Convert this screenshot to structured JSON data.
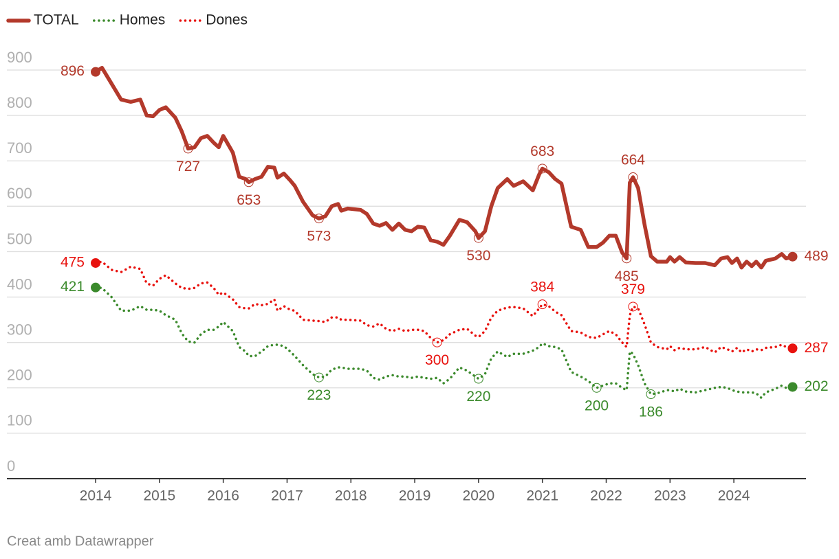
{
  "chart_data": {
    "type": "line",
    "source": "Creat amb Datawrapper",
    "x": [
      2014.0,
      2014.1,
      2014.25,
      2014.4,
      2014.55,
      2014.7,
      2014.8,
      2014.9,
      2015.0,
      2015.1,
      2015.25,
      2015.35,
      2015.45,
      2015.55,
      2015.65,
      2015.75,
      2015.85,
      2015.93,
      2016.0,
      2016.15,
      2016.25,
      2016.35,
      2016.4,
      2016.5,
      2016.6,
      2016.7,
      2016.8,
      2016.85,
      2016.95,
      2017.05,
      2017.12,
      2017.25,
      2017.4,
      2017.5,
      2017.6,
      2017.7,
      2017.8,
      2017.85,
      2017.95,
      2018.15,
      2018.25,
      2018.35,
      2018.45,
      2018.55,
      2018.65,
      2018.75,
      2018.85,
      2018.95,
      2019.05,
      2019.15,
      2019.25,
      2019.35,
      2019.45,
      2019.55,
      2019.7,
      2019.82,
      2019.95,
      2020.0,
      2020.1,
      2020.2,
      2020.3,
      2020.45,
      2020.55,
      2020.7,
      2020.85,
      2020.95,
      2021.0,
      2021.1,
      2021.2,
      2021.3,
      2021.45,
      2021.6,
      2021.72,
      2021.85,
      2021.95,
      2022.05,
      2022.15,
      2022.25,
      2022.32,
      2022.37,
      2022.42,
      2022.5,
      2022.6,
      2022.7,
      2022.8,
      2022.95,
      2023.0,
      2023.07,
      2023.15,
      2023.25,
      2023.4,
      2023.55,
      2023.7,
      2023.8,
      2023.9,
      2023.97,
      2024.05,
      2024.12,
      2024.2,
      2024.28,
      2024.35,
      2024.43,
      2024.5,
      2024.65,
      2024.75,
      2024.82,
      2024.92
    ],
    "series": [
      {
        "name": "TOTAL",
        "color": "#b3392b",
        "style": "solid",
        "labels": [
          0,
          12,
          22,
          33,
          57,
          66,
          78,
          80,
          106
        ],
        "values": [
          896,
          905,
          870,
          835,
          830,
          835,
          800,
          798,
          812,
          818,
          795,
          765,
          727,
          730,
          750,
          755,
          740,
          730,
          755,
          718,
          665,
          660,
          653,
          660,
          665,
          687,
          685,
          663,
          672,
          657,
          645,
          610,
          580,
          573,
          578,
          600,
          605,
          590,
          595,
          592,
          583,
          562,
          557,
          563,
          548,
          562,
          548,
          545,
          555,
          553,
          525,
          522,
          515,
          535,
          570,
          565,
          545,
          530,
          545,
          600,
          640,
          660,
          645,
          655,
          635,
          670,
          683,
          675,
          660,
          650,
          555,
          548,
          510,
          510,
          520,
          535,
          535,
          498,
          485,
          652,
          664,
          640,
          560,
          490,
          478,
          478,
          488,
          478,
          488,
          476,
          475,
          475,
          470,
          485,
          488,
          475,
          485,
          465,
          478,
          468,
          478,
          465,
          480,
          485,
          495,
          485,
          489
        ]
      },
      {
        "name": "Homes",
        "color": "#3b8a2c",
        "style": "dotted",
        "labels": [
          0,
          33,
          57,
          73,
          83,
          106
        ],
        "values": [
          421,
          420,
          400,
          370,
          370,
          380,
          372,
          372,
          370,
          360,
          350,
          320,
          302,
          300,
          318,
          328,
          328,
          335,
          345,
          325,
          290,
          280,
          270,
          270,
          280,
          292,
          295,
          295,
          292,
          280,
          270,
          250,
          230,
          223,
          225,
          240,
          245,
          245,
          242,
          242,
          238,
          222,
          218,
          225,
          228,
          225,
          225,
          222,
          225,
          222,
          220,
          222,
          210,
          220,
          245,
          238,
          225,
          220,
          230,
          265,
          280,
          268,
          275,
          275,
          282,
          290,
          298,
          292,
          290,
          285,
          235,
          225,
          215,
          200,
          205,
          210,
          210,
          200,
          195,
          280,
          275,
          250,
          210,
          186,
          188,
          195,
          195,
          192,
          198,
          192,
          190,
          195,
          200,
          202,
          200,
          195,
          192,
          190,
          190,
          190,
          188,
          178,
          190,
          198,
          205,
          200,
          202
        ]
      },
      {
        "name": "Dones",
        "color": "#e8120e",
        "style": "dotted",
        "labels": [
          0,
          51,
          66,
          80,
          106
        ],
        "values": [
          475,
          478,
          460,
          455,
          467,
          462,
          430,
          425,
          440,
          448,
          430,
          420,
          418,
          420,
          430,
          432,
          420,
          405,
          410,
          395,
          378,
          375,
          375,
          385,
          382,
          385,
          395,
          370,
          380,
          372,
          370,
          350,
          348,
          347,
          345,
          355,
          355,
          350,
          350,
          348,
          338,
          335,
          342,
          330,
          325,
          330,
          325,
          328,
          328,
          325,
          310,
          300,
          305,
          318,
          328,
          330,
          315,
          312,
          325,
          355,
          370,
          377,
          378,
          375,
          358,
          375,
          384,
          380,
          368,
          360,
          325,
          322,
          312,
          310,
          318,
          325,
          318,
          300,
          290,
          360,
          379,
          375,
          340,
          300,
          290,
          285,
          292,
          283,
          288,
          285,
          285,
          290,
          278,
          290,
          285,
          280,
          288,
          278,
          285,
          280,
          285,
          283,
          288,
          290,
          295,
          290,
          287
        ]
      }
    ],
    "xlim": [
      2012.61,
      2025.13
    ],
    "xticks": [
      2014,
      2015,
      2016,
      2017,
      2018,
      2019,
      2020,
      2021,
      2022,
      2023,
      2024
    ],
    "ylim": [
      0,
      900
    ],
    "yticks": [
      0,
      100,
      200,
      300,
      400,
      500,
      600,
      700,
      800,
      900
    ],
    "grid": true,
    "legend": "top-left"
  }
}
